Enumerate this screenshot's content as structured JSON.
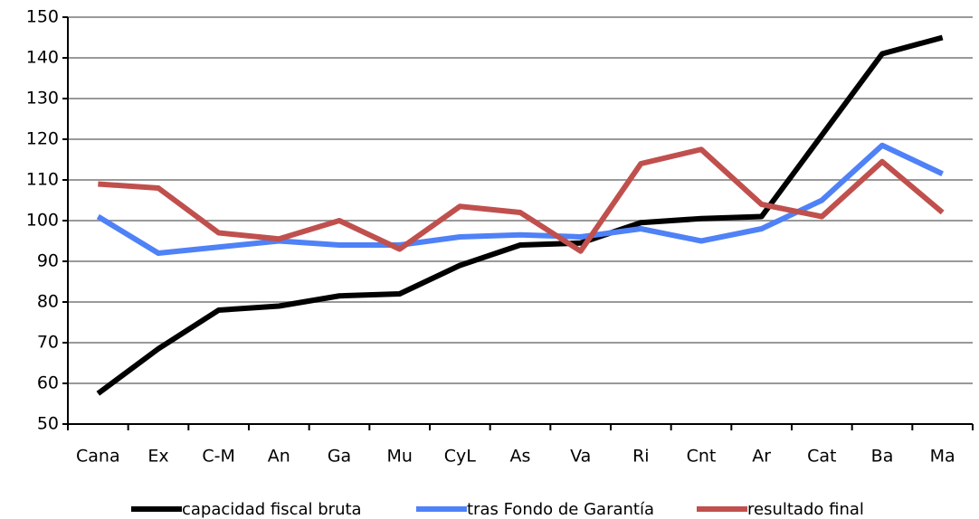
{
  "chart_data": {
    "type": "line",
    "categories": [
      "Cana",
      "Ex",
      "C-M",
      "An",
      "Ga",
      "Mu",
      "CyL",
      "As",
      "Va",
      "Ri",
      "Cnt",
      "Ar",
      "Cat",
      "Ba",
      "Ma"
    ],
    "series": [
      {
        "name": "capacidad fiscal bruta",
        "color": "#000000",
        "values": [
          57.5,
          68.5,
          78,
          79,
          81.5,
          82,
          89,
          94,
          94.5,
          99.5,
          100.5,
          101,
          121,
          141,
          145
        ]
      },
      {
        "name": "tras Fondo de Garantía",
        "color": "#4f81f7",
        "values": [
          101,
          92,
          93.5,
          95,
          94,
          94,
          96,
          96.5,
          96,
          98,
          95,
          98,
          105,
          118.5,
          111.5
        ]
      },
      {
        "name": "resultado final",
        "color": "#c0504d",
        "values": [
          109,
          108,
          97,
          95.5,
          100,
          93,
          103.5,
          102,
          92.5,
          114,
          117.5,
          104,
          101,
          114.5,
          102
        ]
      }
    ],
    "ylim": [
      50,
      150
    ],
    "yticks": [
      50,
      60,
      70,
      80,
      90,
      100,
      110,
      120,
      130,
      140,
      150
    ],
    "grid": true
  }
}
